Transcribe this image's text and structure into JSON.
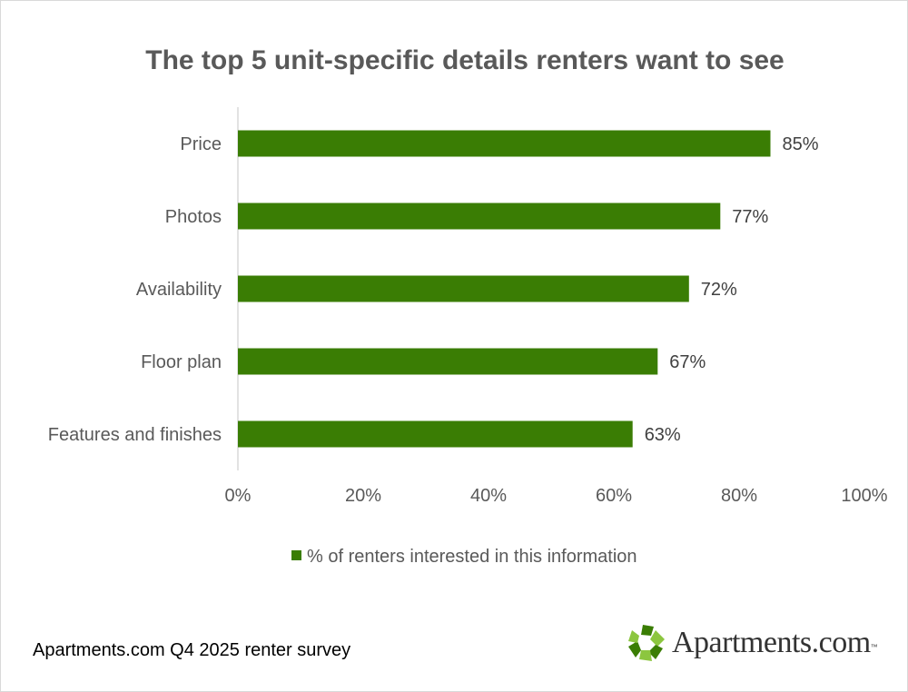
{
  "chart_data": {
    "type": "bar",
    "orientation": "horizontal",
    "title": "The top 5 unit-specific details renters want to see",
    "categories": [
      "Price",
      "Photos",
      "Availability",
      "Floor plan",
      "Features and finishes"
    ],
    "series": [
      {
        "name": "% of renters interested in this information",
        "values": [
          85,
          77,
          72,
          67,
          63
        ],
        "data_labels": [
          "85%",
          "77%",
          "72%",
          "67%",
          "63%"
        ],
        "color": "#3A7D04"
      }
    ],
    "xlim": [
      0,
      100
    ],
    "x_ticks": [
      0,
      20,
      40,
      60,
      80,
      100
    ],
    "x_tick_labels": [
      "0%",
      "20%",
      "40%",
      "60%",
      "80%",
      "100%"
    ],
    "grid": false,
    "legend_position": "bottom"
  },
  "footer": {
    "source": "Apartments.com Q4 2025 renter survey",
    "brand_logo": {
      "name": "Apartments.com",
      "trademark": "™",
      "icon": "apartments-com-logo-mark",
      "colors": [
        "#3A7D04",
        "#8CC63F"
      ]
    }
  },
  "colors": {
    "bar": "#3A7D04",
    "text": "#595959",
    "axis": "#d9d9d9"
  }
}
